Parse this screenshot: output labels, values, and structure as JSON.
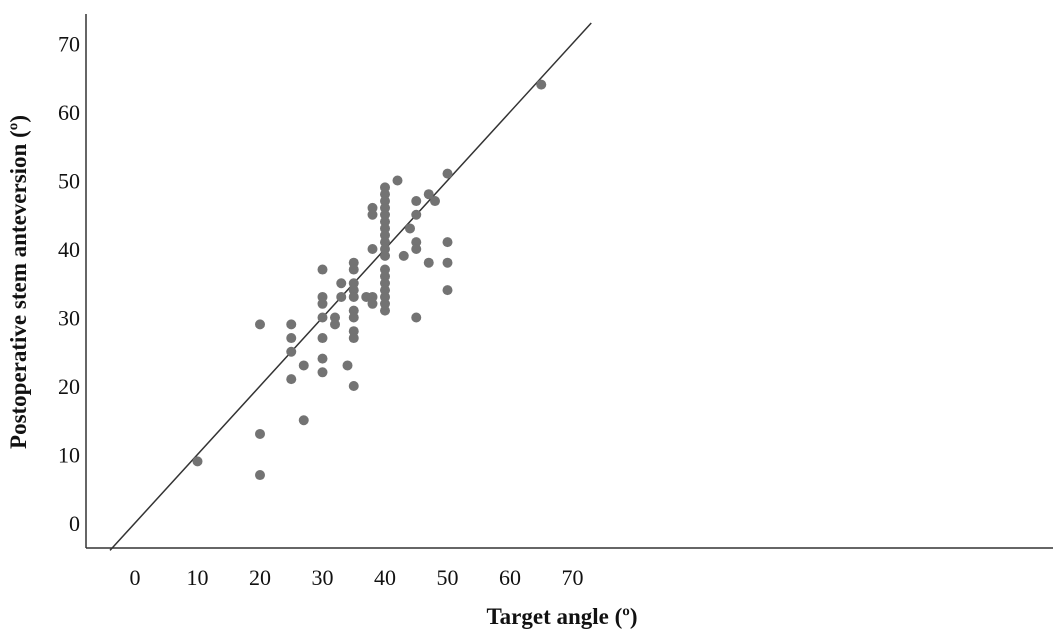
{
  "chart_data": {
    "type": "scatter",
    "title": "",
    "xlabel": "Target angle (º)",
    "ylabel": "Postoperative stem anteversion (º)",
    "xlim": [
      -4,
      73
    ],
    "ylim": [
      -4,
      74
    ],
    "x_ticks": [
      0,
      10,
      20,
      30,
      40,
      50,
      60,
      70
    ],
    "y_ticks": [
      0,
      10,
      20,
      30,
      40,
      50,
      60,
      70
    ],
    "grid": false,
    "point_color": "#737373",
    "line_color": "#333333",
    "reference_line": {
      "slope": 1,
      "intercept": 0
    },
    "points": [
      [
        10,
        9
      ],
      [
        20,
        29
      ],
      [
        20,
        13
      ],
      [
        20,
        7
      ],
      [
        25,
        29
      ],
      [
        25,
        27
      ],
      [
        25,
        25
      ],
      [
        25,
        21
      ],
      [
        27,
        23
      ],
      [
        27,
        15
      ],
      [
        30,
        37
      ],
      [
        30,
        33
      ],
      [
        30,
        32
      ],
      [
        30,
        30
      ],
      [
        30,
        27
      ],
      [
        30,
        24
      ],
      [
        30,
        22
      ],
      [
        32,
        30
      ],
      [
        32,
        29
      ],
      [
        33,
        35
      ],
      [
        33,
        33
      ],
      [
        34,
        23
      ],
      [
        35,
        38
      ],
      [
        35,
        37
      ],
      [
        35,
        35
      ],
      [
        35,
        34
      ],
      [
        35,
        33
      ],
      [
        35,
        31
      ],
      [
        35,
        30
      ],
      [
        35,
        28
      ],
      [
        35,
        27
      ],
      [
        35,
        20
      ],
      [
        37,
        33
      ],
      [
        38,
        46
      ],
      [
        38,
        45
      ],
      [
        38,
        40
      ],
      [
        38,
        33
      ],
      [
        38,
        32
      ],
      [
        40,
        49
      ],
      [
        40,
        48
      ],
      [
        40,
        47
      ],
      [
        40,
        46
      ],
      [
        40,
        45
      ],
      [
        40,
        44
      ],
      [
        40,
        43
      ],
      [
        40,
        42
      ],
      [
        40,
        41
      ],
      [
        40,
        40
      ],
      [
        40,
        39
      ],
      [
        40,
        37
      ],
      [
        40,
        36
      ],
      [
        40,
        35
      ],
      [
        40,
        34
      ],
      [
        40,
        33
      ],
      [
        40,
        32
      ],
      [
        40,
        31
      ],
      [
        42,
        50
      ],
      [
        43,
        39
      ],
      [
        44,
        43
      ],
      [
        45,
        47
      ],
      [
        45,
        45
      ],
      [
        45,
        41
      ],
      [
        45,
        40
      ],
      [
        45,
        30
      ],
      [
        47,
        48
      ],
      [
        47,
        38
      ],
      [
        48,
        47
      ],
      [
        50,
        51
      ],
      [
        50,
        41
      ],
      [
        50,
        38
      ],
      [
        50,
        34
      ],
      [
        65,
        64
      ]
    ]
  }
}
